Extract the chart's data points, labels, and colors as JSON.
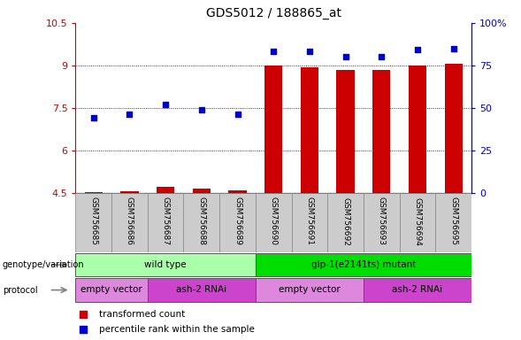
{
  "title": "GDS5012 / 188865_at",
  "samples": [
    "GSM756685",
    "GSM756686",
    "GSM756687",
    "GSM756688",
    "GSM756689",
    "GSM756690",
    "GSM756691",
    "GSM756692",
    "GSM756693",
    "GSM756694",
    "GSM756695"
  ],
  "transformed_count": [
    4.52,
    4.55,
    4.72,
    4.65,
    4.6,
    8.98,
    8.94,
    8.85,
    8.82,
    8.99,
    9.04
  ],
  "percentile_rank": [
    44,
    46,
    52,
    49,
    46,
    83,
    83,
    80,
    80,
    84,
    85
  ],
  "ylim_left": [
    4.5,
    10.5
  ],
  "ylim_right": [
    0,
    100
  ],
  "yticks_left": [
    4.5,
    6.0,
    7.5,
    9.0,
    10.5
  ],
  "yticks_right": [
    0,
    25,
    50,
    75,
    100
  ],
  "ytick_labels_left": [
    "4.5",
    "6",
    "7.5",
    "9",
    "10.5"
  ],
  "ytick_labels_right": [
    "0",
    "25",
    "50",
    "75",
    "100%"
  ],
  "grid_values": [
    6.0,
    7.5,
    9.0
  ],
  "bar_color": "#cc0000",
  "dot_color": "#0000cc",
  "bar_bottom": 4.5,
  "genotype_groups": [
    {
      "label": "wild type",
      "start": 0,
      "end": 5,
      "color": "#aaffaa"
    },
    {
      "label": "glp-1(e2141ts) mutant",
      "start": 5,
      "end": 11,
      "color": "#00dd00"
    }
  ],
  "protocol_groups": [
    {
      "label": "empty vector",
      "start": 0,
      "end": 2,
      "color": "#dd88dd"
    },
    {
      "label": "ash-2 RNAi",
      "start": 2,
      "end": 5,
      "color": "#cc44cc"
    },
    {
      "label": "empty vector",
      "start": 5,
      "end": 8,
      "color": "#dd88dd"
    },
    {
      "label": "ash-2 RNAi",
      "start": 8,
      "end": 11,
      "color": "#cc44cc"
    }
  ],
  "legend_items": [
    {
      "label": "transformed count",
      "color": "#cc0000"
    },
    {
      "label": "percentile rank within the sample",
      "color": "#0000cc"
    }
  ],
  "left_axis_color": "#cc0000",
  "right_axis_color": "#0000cc",
  "bg_color": "#ffffff",
  "tick_area_bg": "#cccccc",
  "genotype_arrow_label": "genotype/variation",
  "protocol_arrow_label": "protocol",
  "bar_width": 0.5
}
